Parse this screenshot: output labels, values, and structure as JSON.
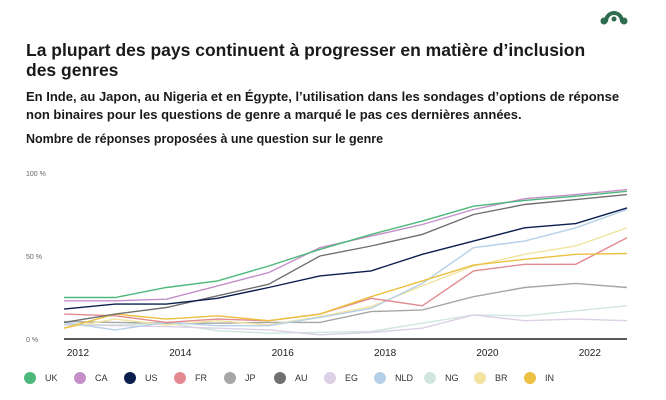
{
  "title": "La plupart des pays continuent à progresser en matière d’inclusion des genres",
  "subtitle": "En Inde, au Japon, au Nigeria et en Égypte, l’utilisation dans les sondages d’options de réponse non binaires pour les questions de genre a marqué le pas ces dernières années.",
  "chart_heading": "Nombre de réponses proposées à une question sur le genre",
  "logo_icon": "surveymonkey-logo-icon",
  "chart_data": {
    "type": "line",
    "x": [
      2012,
      2013,
      2014,
      2015,
      2016,
      2017,
      2018,
      2019,
      2020,
      2021,
      2022,
      2023
    ],
    "x_tick_labels": [
      "2012",
      "2014",
      "2016",
      "2018",
      "2020",
      "2022"
    ],
    "y_tick_labels": [
      "100 %",
      "50 %",
      "0 %"
    ],
    "ylim": [
      0,
      100
    ],
    "grid": false,
    "legend_position": "bottom",
    "series": [
      {
        "name": "UK",
        "color": "#4cb87a",
        "values": [
          25,
          25,
          31,
          35,
          44,
          54,
          63,
          71,
          80,
          83.5,
          86,
          89
        ]
      },
      {
        "name": "CA",
        "color": "#c48fc9",
        "values": [
          23,
          23,
          24,
          32,
          40,
          55,
          62,
          69,
          78,
          84.5,
          87,
          90
        ]
      },
      {
        "name": "US",
        "color": "#0b1f4f",
        "values": [
          18,
          21,
          21,
          24.5,
          31,
          38,
          41,
          51,
          59,
          67,
          69.5,
          79
        ]
      },
      {
        "name": "FR",
        "color": "#e28a90",
        "values": [
          15,
          14,
          10,
          12,
          11,
          15,
          24.5,
          20,
          41,
          45,
          45,
          61
        ]
      },
      {
        "name": "JP",
        "color": "#a6a6a6",
        "values": [
          10.5,
          10,
          9.5,
          9.5,
          10,
          10,
          16.5,
          17.5,
          25.5,
          31,
          33.5,
          31
        ]
      },
      {
        "name": "AU",
        "color": "#707070",
        "values": [
          10,
          15,
          19,
          26,
          33,
          50,
          56,
          63,
          75,
          81,
          84,
          87
        ]
      },
      {
        "name": "EG",
        "color": "#ddd0e4",
        "values": [
          8.5,
          8,
          7.5,
          6.5,
          5.5,
          2.5,
          4,
          6.5,
          14.5,
          11,
          12,
          11
        ]
      },
      {
        "name": "NLD",
        "color": "#b6d0e8",
        "values": [
          10,
          5.5,
          10,
          8,
          8,
          13,
          18.5,
          33.5,
          55,
          59,
          67,
          78
        ]
      },
      {
        "name": "NG",
        "color": "#cfe6de",
        "values": [
          9,
          8.5,
          9.5,
          5,
          3.5,
          4,
          4.5,
          9.5,
          14.5,
          14,
          17,
          20
        ]
      },
      {
        "name": "BR",
        "color": "#f2e3a0",
        "values": [
          6.5,
          12,
          8.5,
          11,
          8.5,
          13.5,
          19.5,
          32,
          44,
          51,
          56,
          67
        ]
      },
      {
        "name": "IN",
        "color": "#ecc040",
        "values": [
          6.5,
          15,
          12,
          14,
          11,
          15,
          25.5,
          35,
          44.5,
          48,
          51,
          51.5
        ]
      }
    ]
  }
}
